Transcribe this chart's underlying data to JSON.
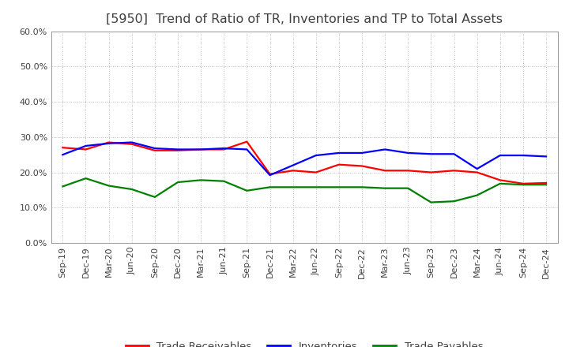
{
  "title": "[5950]  Trend of Ratio of TR, Inventories and TP to Total Assets",
  "labels": [
    "Sep-19",
    "Dec-19",
    "Mar-20",
    "Jun-20",
    "Sep-20",
    "Dec-20",
    "Mar-21",
    "Jun-21",
    "Sep-21",
    "Dec-21",
    "Mar-22",
    "Jun-22",
    "Sep-22",
    "Dec-22",
    "Mar-23",
    "Jun-23",
    "Sep-23",
    "Dec-23",
    "Mar-24",
    "Jun-24",
    "Sep-24",
    "Dec-24"
  ],
  "trade_receivables": [
    0.27,
    0.265,
    0.285,
    0.28,
    0.262,
    0.262,
    0.265,
    0.265,
    0.287,
    0.195,
    0.205,
    0.2,
    0.222,
    0.218,
    0.205,
    0.205,
    0.2,
    0.205,
    0.2,
    0.178,
    0.168,
    0.17
  ],
  "inventories": [
    0.25,
    0.275,
    0.282,
    0.285,
    0.268,
    0.265,
    0.265,
    0.268,
    0.265,
    0.192,
    0.22,
    0.248,
    0.255,
    0.255,
    0.265,
    0.255,
    0.252,
    0.252,
    0.21,
    0.248,
    0.248,
    0.245
  ],
  "trade_payables": [
    0.16,
    0.183,
    0.162,
    0.152,
    0.13,
    0.172,
    0.178,
    0.175,
    0.148,
    0.158,
    0.158,
    0.158,
    0.158,
    0.158,
    0.155,
    0.155,
    0.115,
    0.118,
    0.135,
    0.168,
    0.165,
    0.165
  ],
  "ylim": [
    0.0,
    0.6
  ],
  "yticks": [
    0.0,
    0.1,
    0.2,
    0.3,
    0.4,
    0.5,
    0.6
  ],
  "line_colors": {
    "trade_receivables": "#ff0000",
    "inventories": "#0000ff",
    "trade_payables": "#008000"
  },
  "legend_labels": [
    "Trade Receivables",
    "Inventories",
    "Trade Payables"
  ],
  "background_color": "#ffffff",
  "grid_color": "#aaaaaa",
  "title_color": "#404040",
  "title_fontsize": 11.5,
  "tick_fontsize": 8,
  "legend_fontsize": 9.5,
  "linewidth": 1.6
}
